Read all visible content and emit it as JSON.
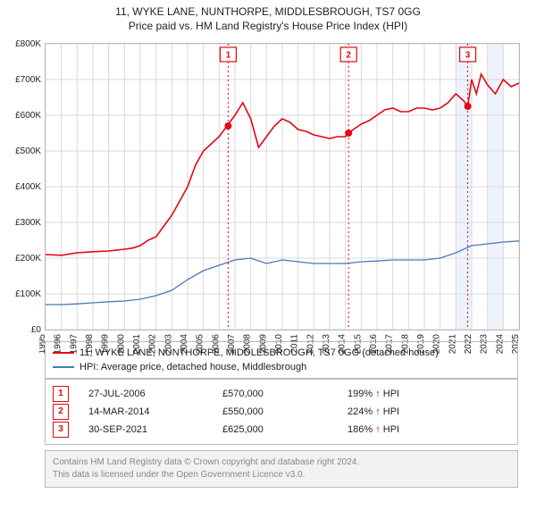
{
  "title_line1": "11, WYKE LANE, NUNTHORPE, MIDDLESBROUGH, TS7 0GG",
  "title_line2": "Price paid vs. HM Land Registry's House Price Index (HPI)",
  "chart": {
    "type": "line",
    "x_start_year": 1995,
    "x_end_year": 2025,
    "x_tick_years": [
      1995,
      1996,
      1997,
      1998,
      1999,
      2000,
      2001,
      2002,
      2003,
      2004,
      2005,
      2006,
      2007,
      2008,
      2009,
      2010,
      2011,
      2012,
      2013,
      2014,
      2015,
      2016,
      2017,
      2018,
      2019,
      2020,
      2021,
      2022,
      2023,
      2024,
      2025
    ],
    "y_min": 0,
    "y_max": 800,
    "y_tick_step": 100,
    "y_tick_labels": [
      "£0",
      "£100K",
      "£200K",
      "£300K",
      "£400K",
      "£500K",
      "£600K",
      "£700K",
      "£800K"
    ],
    "background_color": "#ffffff",
    "grid_color": "#d9d9d9",
    "bands_after_year": 2021,
    "band_color": "#eef3fb",
    "series": {
      "price": {
        "label": "11, WYKE LANE, NUNTHORPE, MIDDLESBROUGH, TS7 0GG (detached house)",
        "color": "#e30613",
        "line_width": 1.6,
        "points": [
          [
            1995.0,
            210
          ],
          [
            1996.0,
            208
          ],
          [
            1997.0,
            215
          ],
          [
            1998.0,
            218
          ],
          [
            1999.0,
            220
          ],
          [
            2000.0,
            225
          ],
          [
            2000.5,
            228
          ],
          [
            2001.0,
            235
          ],
          [
            2001.5,
            250
          ],
          [
            2002.0,
            260
          ],
          [
            2002.5,
            290
          ],
          [
            2003.0,
            320
          ],
          [
            2003.5,
            360
          ],
          [
            2004.0,
            400
          ],
          [
            2004.5,
            460
          ],
          [
            2005.0,
            500
          ],
          [
            2005.5,
            520
          ],
          [
            2006.0,
            540
          ],
          [
            2006.5,
            570
          ],
          [
            2007.0,
            600
          ],
          [
            2007.5,
            635
          ],
          [
            2008.0,
            590
          ],
          [
            2008.5,
            510
          ],
          [
            2009.0,
            540
          ],
          [
            2009.5,
            570
          ],
          [
            2010.0,
            590
          ],
          [
            2010.5,
            580
          ],
          [
            2011.0,
            560
          ],
          [
            2011.5,
            555
          ],
          [
            2012.0,
            545
          ],
          [
            2012.5,
            540
          ],
          [
            2013.0,
            535
          ],
          [
            2013.5,
            540
          ],
          [
            2014.0,
            540
          ],
          [
            2014.2,
            550
          ],
          [
            2014.5,
            560
          ],
          [
            2015.0,
            575
          ],
          [
            2015.5,
            585
          ],
          [
            2016.0,
            600
          ],
          [
            2016.5,
            615
          ],
          [
            2017.0,
            620
          ],
          [
            2017.5,
            610
          ],
          [
            2018.0,
            610
          ],
          [
            2018.5,
            620
          ],
          [
            2019.0,
            620
          ],
          [
            2019.5,
            615
          ],
          [
            2020.0,
            620
          ],
          [
            2020.5,
            635
          ],
          [
            2021.0,
            660
          ],
          [
            2021.5,
            640
          ],
          [
            2021.75,
            625
          ],
          [
            2022.0,
            700
          ],
          [
            2022.3,
            660
          ],
          [
            2022.6,
            715
          ],
          [
            2023.0,
            685
          ],
          [
            2023.5,
            660
          ],
          [
            2024.0,
            700
          ],
          [
            2024.5,
            680
          ],
          [
            2025.0,
            690
          ]
        ]
      },
      "hpi": {
        "label": "HPI: Average price, detached house, Middlesbrough",
        "color": "#4a78b5",
        "line_width": 1.3,
        "points": [
          [
            1995.0,
            70
          ],
          [
            1996.0,
            70
          ],
          [
            1997.0,
            72
          ],
          [
            1998.0,
            75
          ],
          [
            1999.0,
            78
          ],
          [
            2000.0,
            80
          ],
          [
            2001.0,
            85
          ],
          [
            2002.0,
            95
          ],
          [
            2003.0,
            110
          ],
          [
            2004.0,
            140
          ],
          [
            2005.0,
            165
          ],
          [
            2006.0,
            180
          ],
          [
            2007.0,
            195
          ],
          [
            2008.0,
            200
          ],
          [
            2009.0,
            185
          ],
          [
            2010.0,
            195
          ],
          [
            2011.0,
            190
          ],
          [
            2012.0,
            185
          ],
          [
            2013.0,
            185
          ],
          [
            2014.0,
            185
          ],
          [
            2015.0,
            190
          ],
          [
            2016.0,
            192
          ],
          [
            2017.0,
            195
          ],
          [
            2018.0,
            195
          ],
          [
            2019.0,
            195
          ],
          [
            2020.0,
            200
          ],
          [
            2021.0,
            215
          ],
          [
            2022.0,
            235
          ],
          [
            2023.0,
            240
          ],
          [
            2024.0,
            245
          ],
          [
            2025.0,
            248
          ]
        ]
      }
    },
    "markers": [
      {
        "num": "1",
        "year": 2006.57,
        "value": 570
      },
      {
        "num": "2",
        "year": 2014.2,
        "value": 550
      },
      {
        "num": "3",
        "year": 2021.75,
        "value": 625
      }
    ]
  },
  "legend": {
    "row1": "11, WYKE LANE, NUNTHORPE, MIDDLESBROUGH, TS7 0GG (detached house)",
    "row2": "HPI: Average price, detached house, Middlesbrough"
  },
  "transactions": [
    {
      "num": "1",
      "date": "27-JUL-2006",
      "price": "£570,000",
      "delta": "199% ↑ HPI"
    },
    {
      "num": "2",
      "date": "14-MAR-2014",
      "price": "£550,000",
      "delta": "224% ↑ HPI"
    },
    {
      "num": "3",
      "date": "30-SEP-2021",
      "price": "£625,000",
      "delta": "186% ↑ HPI"
    }
  ],
  "footer": {
    "line1": "Contains HM Land Registry data © Crown copyright and database right 2024.",
    "line2": "This data is licensed under the Open Government Licence v3.0."
  }
}
